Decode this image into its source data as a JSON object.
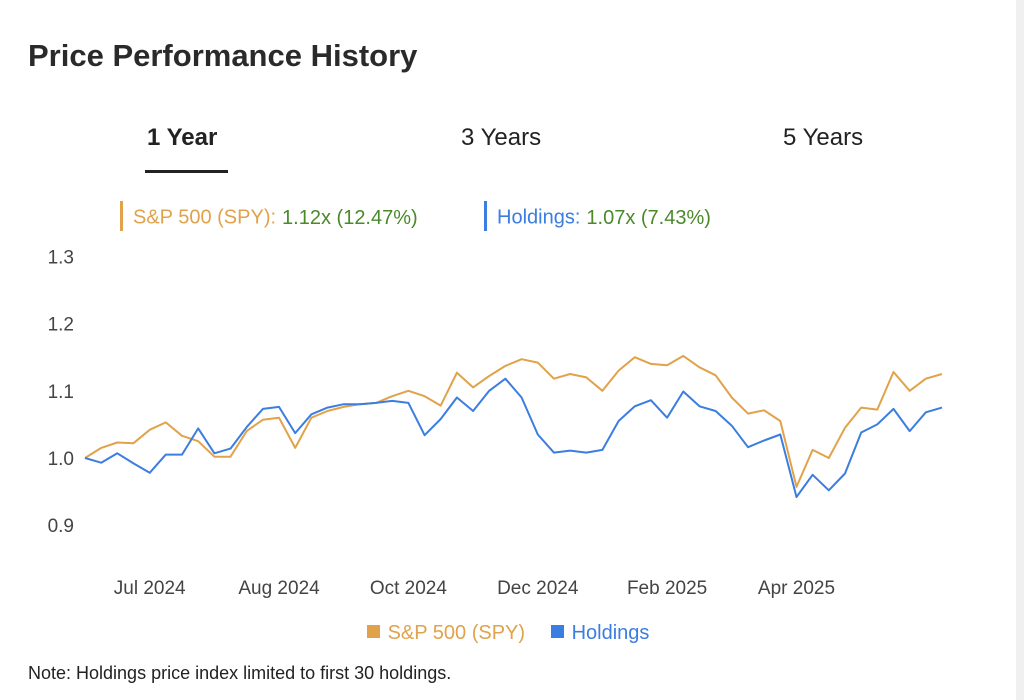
{
  "header": {
    "title": "Price Performance History"
  },
  "tabs": [
    {
      "label": "1 Year",
      "active": true
    },
    {
      "label": "3 Years",
      "active": false
    },
    {
      "label": "5 Years",
      "active": false
    }
  ],
  "summary": {
    "spy_label": "S&P 500 (SPY):",
    "spy_value": "1.12x (12.47%)",
    "holdings_label": "Holdings:",
    "holdings_value": "1.07x (7.43%)"
  },
  "colors": {
    "spy": "#e0a24a",
    "holdings": "#3b7de0",
    "value_green": "#4a8a2a"
  },
  "chart_data": {
    "type": "line",
    "title": "",
    "xlabel": "",
    "ylabel": "",
    "ylim": [
      0.88,
      1.34
    ],
    "y_ticks": [
      "1.3",
      "1.2",
      "1.1",
      "1.0",
      "0.9"
    ],
    "x_ticks": [
      "Jul 2024",
      "Aug 2024",
      "Oct 2024",
      "Dec 2024",
      "Feb 2025",
      "Apr 2025"
    ],
    "x_tick_index": [
      4,
      12,
      20,
      28,
      36,
      44
    ],
    "grid": false,
    "legend_position": "bottom",
    "series": [
      {
        "name": "S&P 500 (SPY)",
        "color": "#e0a24a",
        "values": [
          1.0,
          1.015,
          1.023,
          1.022,
          1.042,
          1.053,
          1.033,
          1.025,
          1.002,
          1.002,
          1.04,
          1.057,
          1.06,
          1.015,
          1.06,
          1.07,
          1.076,
          1.08,
          1.082,
          1.092,
          1.1,
          1.092,
          1.078,
          1.127,
          1.105,
          1.122,
          1.137,
          1.147,
          1.142,
          1.118,
          1.125,
          1.12,
          1.1,
          1.13,
          1.15,
          1.14,
          1.138,
          1.152,
          1.135,
          1.123,
          1.09,
          1.066,
          1.071,
          1.055,
          0.957,
          1.012,
          1.0,
          1.045,
          1.075,
          1.072,
          1.128,
          1.1,
          1.118,
          1.125
        ]
      },
      {
        "name": "Holdings",
        "color": "#3b7de0",
        "values": [
          1.0,
          0.993,
          1.007,
          0.992,
          0.978,
          1.005,
          1.005,
          1.044,
          1.007,
          1.014,
          1.046,
          1.073,
          1.076,
          1.037,
          1.065,
          1.075,
          1.08,
          1.08,
          1.082,
          1.085,
          1.082,
          1.034,
          1.058,
          1.09,
          1.07,
          1.1,
          1.118,
          1.09,
          1.035,
          1.008,
          1.011,
          1.008,
          1.012,
          1.055,
          1.077,
          1.086,
          1.06,
          1.099,
          1.077,
          1.07,
          1.048,
          1.016,
          1.026,
          1.035,
          0.942,
          0.975,
          0.952,
          0.977,
          1.038,
          1.05,
          1.073,
          1.04,
          1.068,
          1.075
        ]
      }
    ]
  },
  "legend": [
    {
      "label": "S&P 500 (SPY)",
      "color": "#e0a24a"
    },
    {
      "label": "Holdings",
      "color": "#3b7de0"
    }
  ],
  "note": "Note: Holdings price index limited to first 30 holdings."
}
